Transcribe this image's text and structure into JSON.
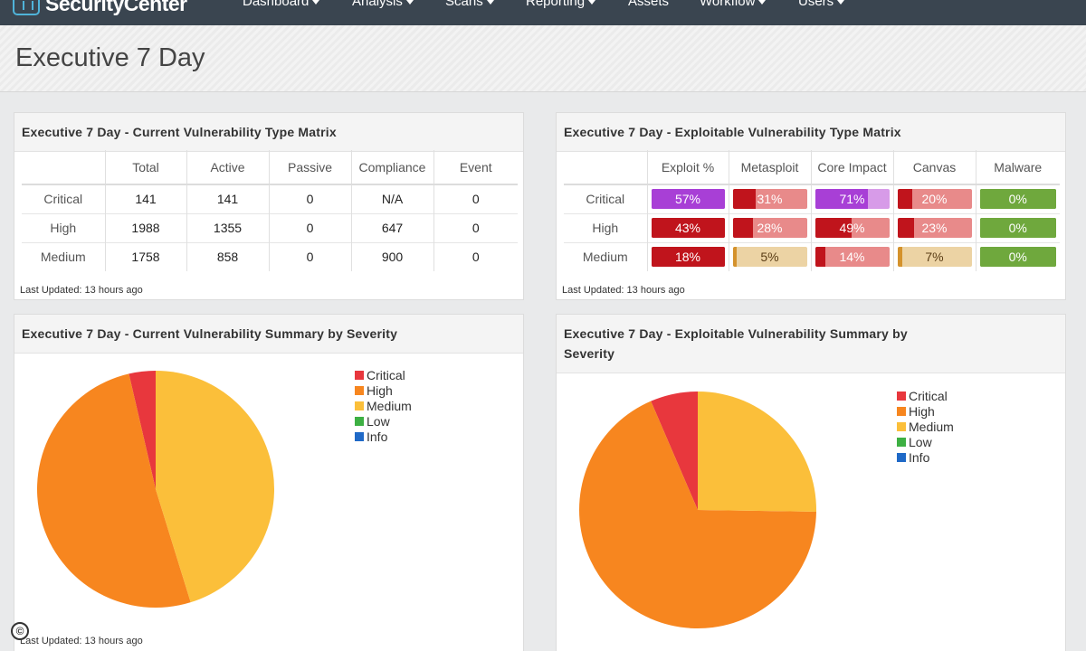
{
  "app": {
    "name": "SecurityCenter"
  },
  "nav": [
    {
      "label": "Dashboard",
      "dropdown": true
    },
    {
      "label": "Analysis",
      "dropdown": true
    },
    {
      "label": "Scans",
      "dropdown": true
    },
    {
      "label": "Reporting",
      "dropdown": true
    },
    {
      "label": "Assets",
      "dropdown": false
    },
    {
      "label": "Workflow",
      "dropdown": true
    },
    {
      "label": "Users",
      "dropdown": true
    }
  ],
  "page": {
    "title": "Executive 7 Day"
  },
  "current_matrix": {
    "title": "Executive 7 Day - Current Vulnerability Type Matrix",
    "columns": [
      "Total",
      "Active",
      "Passive",
      "Compliance",
      "Event"
    ],
    "rows": [
      {
        "label": "Critical",
        "values": [
          "141",
          "141",
          "0",
          "N/A",
          "0"
        ]
      },
      {
        "label": "High",
        "values": [
          "1988",
          "1355",
          "0",
          "647",
          "0"
        ]
      },
      {
        "label": "Medium",
        "values": [
          "1758",
          "858",
          "0",
          "900",
          "0"
        ]
      }
    ],
    "updated": "Last Updated: 13 hours ago"
  },
  "exploitable_matrix": {
    "title": "Executive 7 Day - Exploitable Vulnerability Type Matrix",
    "columns": [
      "Exploit %",
      "Metasploit",
      "Core Impact",
      "Canvas",
      "Malware"
    ],
    "rows": [
      {
        "label": "Critical",
        "cells": [
          {
            "text": "57%",
            "pct": 100,
            "fg": "#a83fd6",
            "bg": "#a83fd6"
          },
          {
            "text": "31%",
            "pct": 31,
            "fg": "#c0141c",
            "bg": "#e88a8a"
          },
          {
            "text": "71%",
            "pct": 71,
            "fg": "#a83fd6",
            "bg": "#d79be8"
          },
          {
            "text": "20%",
            "pct": 20,
            "fg": "#c0141c",
            "bg": "#e88a8a"
          },
          {
            "text": "0%",
            "pct": 100,
            "fg": "#6fa83d",
            "bg": "#6fa83d"
          }
        ]
      },
      {
        "label": "High",
        "cells": [
          {
            "text": "43%",
            "pct": 100,
            "fg": "#c0141c",
            "bg": "#c0141c"
          },
          {
            "text": "28%",
            "pct": 28,
            "fg": "#c0141c",
            "bg": "#e88a8a"
          },
          {
            "text": "49%",
            "pct": 49,
            "fg": "#c0141c",
            "bg": "#e88a8a"
          },
          {
            "text": "23%",
            "pct": 23,
            "fg": "#c0141c",
            "bg": "#e88a8a"
          },
          {
            "text": "0%",
            "pct": 100,
            "fg": "#6fa83d",
            "bg": "#6fa83d"
          }
        ]
      },
      {
        "label": "Medium",
        "cells": [
          {
            "text": "18%",
            "pct": 100,
            "fg": "#c0141c",
            "bg": "#c0141c"
          },
          {
            "text": "5%",
            "pct": 5,
            "fg": "#d4922c",
            "bg": "#ecd3a4",
            "light": true
          },
          {
            "text": "14%",
            "pct": 14,
            "fg": "#c0141c",
            "bg": "#e88a8a"
          },
          {
            "text": "7%",
            "pct": 7,
            "fg": "#d4922c",
            "bg": "#ecd3a4",
            "light": true
          },
          {
            "text": "0%",
            "pct": 100,
            "fg": "#6fa83d",
            "bg": "#6fa83d"
          }
        ]
      }
    ],
    "updated": "Last Updated: 13 hours ago"
  },
  "current_summary": {
    "title": "Executive 7 Day - Current Vulnerability Summary by Severity",
    "updated": "Last Updated: 13 hours ago",
    "legend": [
      {
        "label": "Critical",
        "color": "#e8373d"
      },
      {
        "label": "High",
        "color": "#f7861f"
      },
      {
        "label": "Medium",
        "color": "#fbbf3a"
      },
      {
        "label": "Low",
        "color": "#3db043"
      },
      {
        "label": "Info",
        "color": "#1f69c7"
      }
    ]
  },
  "exploitable_summary": {
    "title": "Executive 7 Day - Exploitable Vulnerability Summary by Severity",
    "legend": [
      {
        "label": "Critical",
        "color": "#e8373d"
      },
      {
        "label": "High",
        "color": "#f7861f"
      },
      {
        "label": "Medium",
        "color": "#fbbf3a"
      },
      {
        "label": "Low",
        "color": "#3db043"
      },
      {
        "label": "Info",
        "color": "#1f69c7"
      }
    ]
  },
  "chart_data": [
    {
      "type": "pie",
      "title": "Executive 7 Day - Current Vulnerability Summary by Severity",
      "categories": [
        "Critical",
        "High",
        "Medium",
        "Low",
        "Info"
      ],
      "values": [
        141,
        1988,
        1758,
        0,
        0
      ],
      "colors": [
        "#e8373d",
        "#f7861f",
        "#fbbf3a",
        "#3db043",
        "#1f69c7"
      ],
      "legend": "right"
    },
    {
      "type": "pie",
      "title": "Executive 7 Day - Exploitable Vulnerability Summary by Severity",
      "categories": [
        "Critical",
        "High",
        "Medium",
        "Low",
        "Info"
      ],
      "values": [
        81,
        855,
        316,
        0,
        0
      ],
      "colors": [
        "#e8373d",
        "#f7861f",
        "#fbbf3a",
        "#3db043",
        "#1f69c7"
      ],
      "legend": "right"
    }
  ],
  "copyright": {
    "symbol": "©"
  }
}
